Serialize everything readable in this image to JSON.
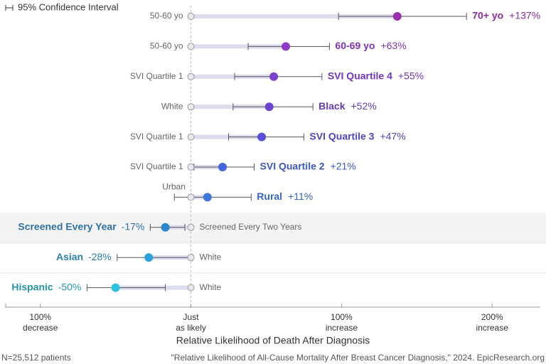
{
  "chart_data": {
    "type": "dot",
    "legend": "95% Confidence Interval",
    "xlabel": "Relative Likelihood of Death After Diagnosis",
    "note": "N=25,512 patients",
    "source": "\"Relative Likelihood of All-Cause Mortality After Breast Cancer Diagnosis,\" 2024. EpicResearch.org",
    "xlim": [
      -123,
      232
    ],
    "xticks": [
      {
        "value": -100,
        "label": "100%\ndecrease"
      },
      {
        "value": 0,
        "label": "Just\nas likely"
      },
      {
        "value": 100,
        "label": "100%\nincrease"
      },
      {
        "value": 200,
        "label": "200%\nincrease"
      }
    ],
    "rows": [
      {
        "label": "70+ yo",
        "reference": "50-60 yo",
        "value": 137,
        "value_label": "+137%",
        "ci": [
          98,
          183
        ],
        "color": "#9a2fb0",
        "text_color": "#8c2aa4"
      },
      {
        "label": "60-69 yo",
        "reference": "50-60 yo",
        "value": 63,
        "value_label": "+63%",
        "ci": [
          38,
          92
        ],
        "color": "#8c3acb",
        "text_color": "#7f33bb"
      },
      {
        "label": "SVI Quartile 4",
        "reference": "SVI Quartile 1",
        "value": 55,
        "value_label": "+55%",
        "ci": [
          29,
          87
        ],
        "color": "#7c42cf",
        "text_color": "#7036c0"
      },
      {
        "label": "Black",
        "reference": "White",
        "value": 52,
        "value_label": "+52%",
        "ci": [
          28,
          81
        ],
        "color": "#6c46d0",
        "text_color": "#613cc0"
      },
      {
        "label": "SVI Quartile 3",
        "reference": "SVI Quartile 1",
        "value": 47,
        "value_label": "+47%",
        "ci": [
          25,
          75
        ],
        "color": "#5a50d8",
        "text_color": "#4e45c2"
      },
      {
        "label": "SVI Quartile 2",
        "reference": "SVI Quartile 1",
        "value": 21,
        "value_label": "+21%",
        "ci": [
          2,
          42
        ],
        "color": "#4466dc",
        "text_color": "#3b57c4"
      },
      {
        "label": "Rural",
        "reference": "Urban",
        "value": 11,
        "value_label": "+11%",
        "ci": [
          -11,
          40
        ],
        "color": "#3c78dc",
        "text_color": "#3565c0"
      },
      {
        "label": "Screened Every Year",
        "reference": "Screened Every Two Years",
        "value": -17,
        "value_label": "-17%",
        "ci": [
          -27,
          -4
        ],
        "color": "#2e88cc",
        "text_color": "#2f6fa8"
      },
      {
        "label": "Asian",
        "reference": "White",
        "value": -28,
        "value_label": "-28%",
        "ci": [
          -49,
          1
        ],
        "color": "#2ba2da",
        "text_color": "#2a7fa8"
      },
      {
        "label": "Hispanic",
        "reference": "White",
        "value": -50,
        "value_label": "-50%",
        "ci": [
          -69,
          -17
        ],
        "color": "#2cc3e2",
        "text_color": "#2696a8"
      }
    ]
  }
}
